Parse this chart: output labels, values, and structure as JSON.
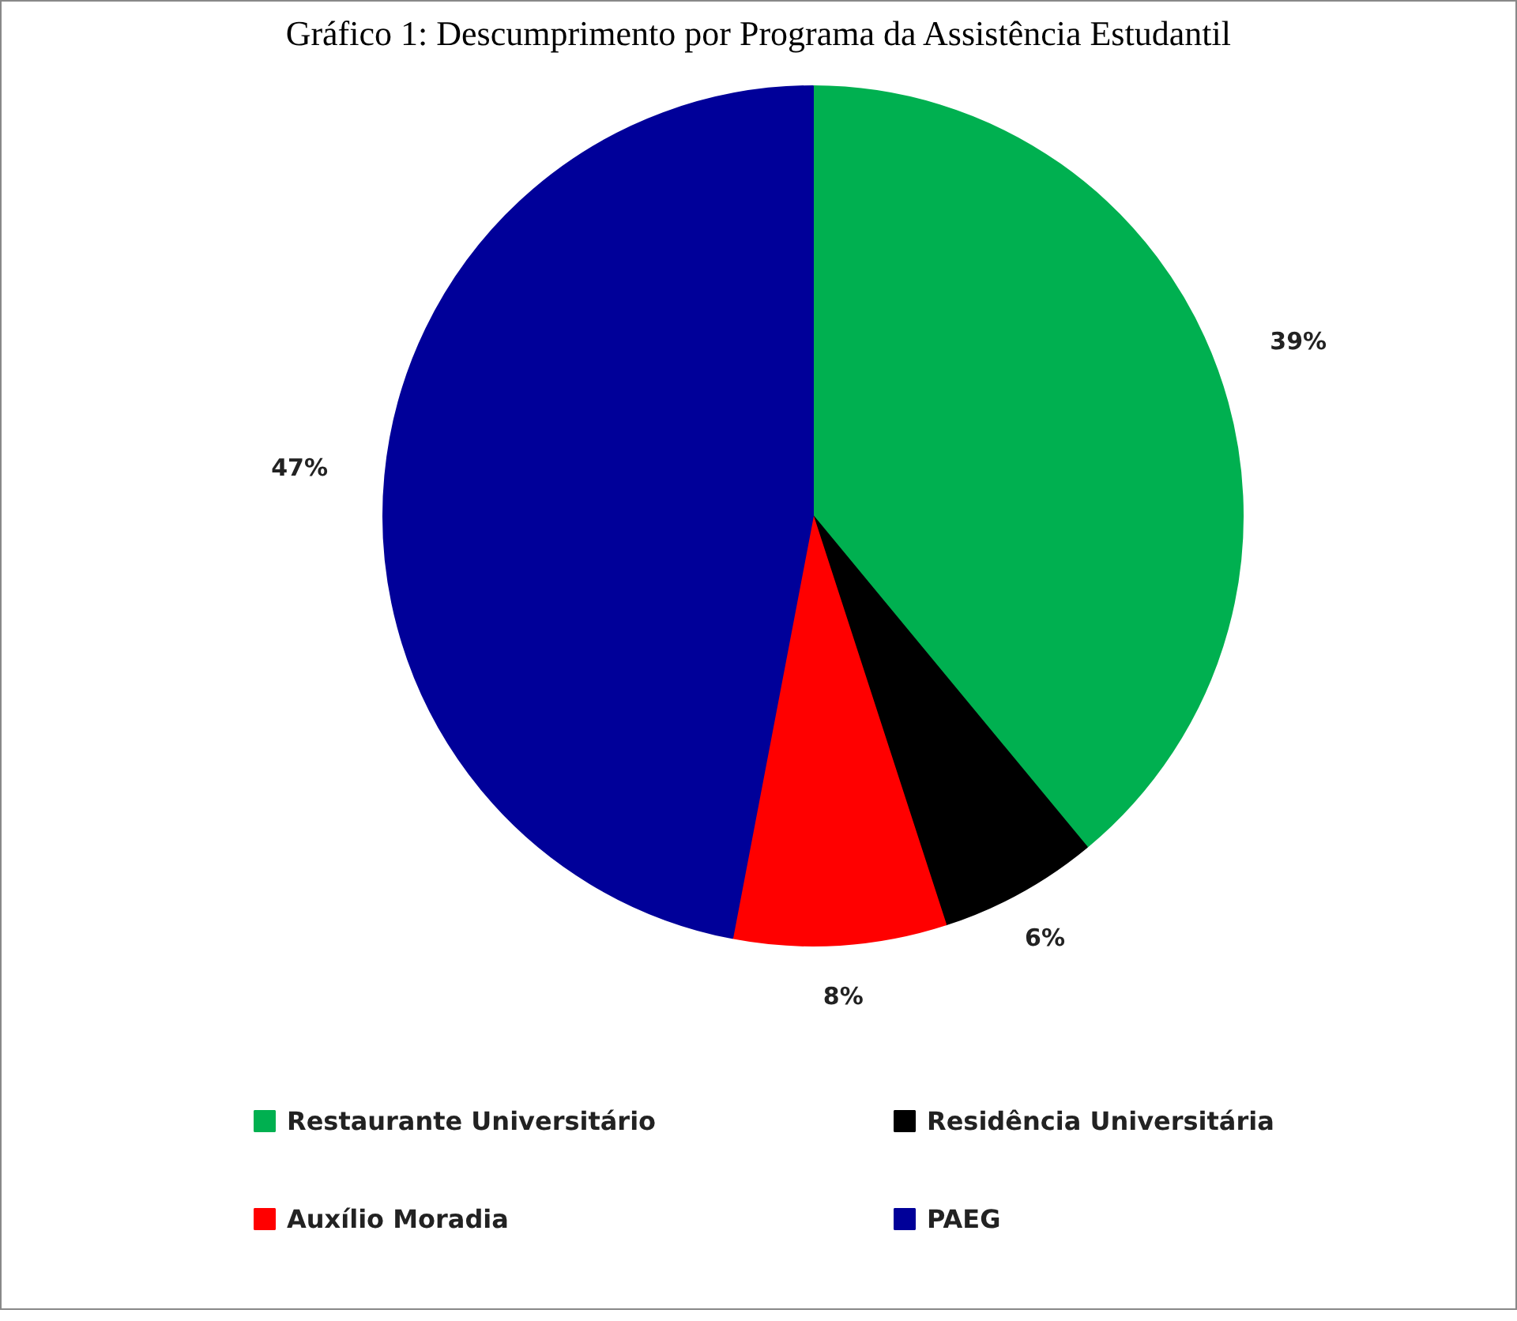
{
  "chart_data": {
    "type": "pie",
    "title": "Gráfico 1: Descumprimento por Programa da Assistência Estudantil",
    "categories": [
      "Restaurante Universitário",
      "Residência Universitária",
      "Auxílio Moradia",
      "PAEG"
    ],
    "values": [
      39,
      6,
      8,
      47
    ],
    "colors": [
      "#00b050",
      "#000000",
      "#ff0000",
      "#000099"
    ],
    "value_labels": [
      "39%",
      "6%",
      "8%",
      "47%"
    ],
    "legend": "bottom"
  }
}
